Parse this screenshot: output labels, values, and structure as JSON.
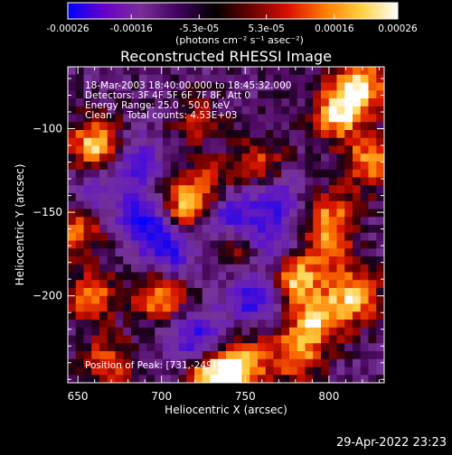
{
  "chart_data": {
    "type": "heatmap",
    "title": "Reconstructed RHESSI Image",
    "xlabel": "Heliocentric X (arcsec)",
    "ylabel": "Heliocentric Y (arcsec)",
    "xlim": [
      644,
      833
    ],
    "ylim": [
      -252,
      -63
    ],
    "x_ticks": [
      650,
      700,
      750,
      800
    ],
    "y_ticks": [
      -100,
      -150,
      -200
    ],
    "colorbar": {
      "ticks": [
        "-0.00026",
        "-0.00016",
        "-5.3e-05",
        "5.3e-05",
        "0.00016",
        "0.00026"
      ],
      "tick_values": [
        -0.00026,
        -0.00016,
        -5.3e-05,
        5.3e-05,
        0.00016,
        0.00026
      ],
      "range": [
        -0.00026,
        0.00026
      ],
      "units_label": "(photons cm⁻² s⁻¹ asec⁻²)",
      "colormap": [
        "#0000ff",
        "#6a00c8",
        "#7a2e98",
        "#400060",
        "#000000",
        "#6a0000",
        "#d81000",
        "#ff7a00",
        "#ffd040",
        "#ffffff"
      ]
    },
    "annotations": [
      "18-Mar-2003 18:40:00.000 to 18:45:32.000",
      "Detectors: 3F 4F 5F 6F 7F 8F, Att 0",
      "Energy Range: 25.0 - 50.0 keV",
      "Clean     Total counts: 4.53E+03"
    ],
    "peak_label": "Position of Peak: [731,-249]",
    "hotspots": [
      {
        "x": 818,
        "y": -75,
        "v": 1.0
      },
      {
        "x": 805,
        "y": -92,
        "v": 0.85
      },
      {
        "x": 825,
        "y": -120,
        "v": 0.75
      },
      {
        "x": 800,
        "y": -150,
        "v": 0.6
      },
      {
        "x": 815,
        "y": -200,
        "v": 0.9
      },
      {
        "x": 792,
        "y": -215,
        "v": 0.8
      },
      {
        "x": 780,
        "y": -190,
        "v": 0.85
      },
      {
        "x": 800,
        "y": -170,
        "v": 0.55
      },
      {
        "x": 660,
        "y": -110,
        "v": 0.9
      },
      {
        "x": 650,
        "y": -160,
        "v": 0.7
      },
      {
        "x": 658,
        "y": -200,
        "v": 0.65
      },
      {
        "x": 700,
        "y": -200,
        "v": 0.85
      },
      {
        "x": 712,
        "y": -147,
        "v": 0.8
      },
      {
        "x": 730,
        "y": -135,
        "v": 0.6
      },
      {
        "x": 760,
        "y": -120,
        "v": 0.55
      },
      {
        "x": 731,
        "y": -249,
        "v": 1.0
      },
      {
        "x": 748,
        "y": -240,
        "v": 0.85
      },
      {
        "x": 780,
        "y": -235,
        "v": 0.7
      },
      {
        "x": 668,
        "y": -240,
        "v": 0.6
      },
      {
        "x": 745,
        "y": -170,
        "v": 0.45
      },
      {
        "x": 720,
        "y": -95,
        "v": 0.4
      }
    ],
    "coldspots": [
      {
        "x": 690,
        "y": -155,
        "v": -0.9
      },
      {
        "x": 740,
        "y": -150,
        "v": -0.85
      },
      {
        "x": 755,
        "y": -200,
        "v": -0.8
      },
      {
        "x": 720,
        "y": -225,
        "v": -0.75
      },
      {
        "x": 685,
        "y": -120,
        "v": -0.6
      },
      {
        "x": 705,
        "y": -175,
        "v": -0.7
      },
      {
        "x": 765,
        "y": -165,
        "v": -0.6
      },
      {
        "x": 660,
        "y": -140,
        "v": -0.4
      },
      {
        "x": 770,
        "y": -140,
        "v": -0.5
      }
    ]
  },
  "footer": {
    "timestamp": "29-Apr-2022 23:23"
  }
}
